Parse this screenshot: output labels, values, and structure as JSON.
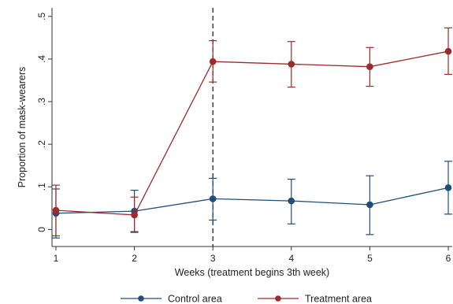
{
  "chart_data": {
    "type": "line",
    "title": "",
    "xlabel": "Weeks (treatment begins 3th week)",
    "ylabel": "Proportion of mask-wearers",
    "x": [
      1,
      2,
      3,
      4,
      5,
      6
    ],
    "x_tick_labels": [
      "1",
      "2",
      "3",
      "4",
      "5",
      "6"
    ],
    "xlim": [
      0.95,
      6.05
    ],
    "ylim": [
      -0.04,
      0.52
    ],
    "y_ticks": [
      0,
      0.1,
      0.2,
      0.3,
      0.4,
      0.5
    ],
    "y_tick_labels": [
      "0",
      ".1",
      ".2",
      ".3",
      ".4",
      ".5"
    ],
    "treatment_start_line_x": 3,
    "grid": false,
    "legend_position": "bottom",
    "series": [
      {
        "name": "Control area",
        "color": "#1f4e79",
        "values": [
          0.038,
          0.043,
          0.072,
          0.067,
          0.058,
          0.098
        ],
        "ci_low": [
          -0.02,
          -0.005,
          0.022,
          0.013,
          -0.012,
          0.036
        ],
        "ci_high": [
          0.095,
          0.092,
          0.12,
          0.118,
          0.126,
          0.16
        ]
      },
      {
        "name": "Treatment area",
        "color": "#9e2a2b",
        "values": [
          0.045,
          0.034,
          0.394,
          0.388,
          0.382,
          0.418
        ],
        "ci_low": [
          -0.015,
          -0.007,
          0.346,
          0.334,
          0.336,
          0.364
        ],
        "ci_high": [
          0.104,
          0.076,
          0.443,
          0.441,
          0.427,
          0.473
        ]
      }
    ]
  }
}
